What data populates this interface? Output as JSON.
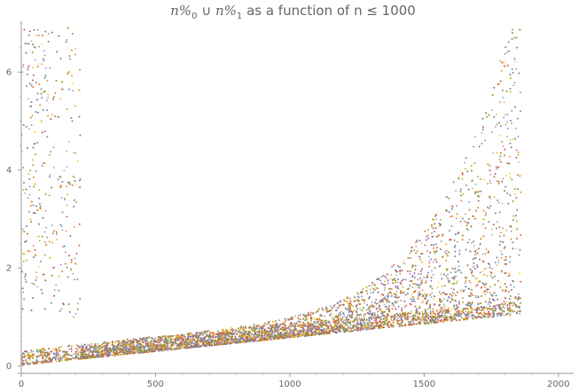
{
  "chart_data": {
    "type": "scatter",
    "title": {
      "var1": "n%",
      "sub1": "0",
      "union": "∪",
      "var2": "n%",
      "sub2": "1",
      "rest": "as a function of n ≤ 1000"
    },
    "xlabel": "",
    "ylabel": "",
    "xlim": [
      0,
      2050
    ],
    "ylim": [
      -0.15,
      7
    ],
    "x_ticks": [
      "0",
      "500",
      "1000",
      "1500",
      "2000"
    ],
    "y_ticks": [
      "0",
      "2",
      "4",
      "6"
    ],
    "x_tick_values": [
      0,
      500,
      1000,
      1500,
      2000
    ],
    "y_tick_values": [
      0,
      2,
      4,
      6
    ],
    "grid": false,
    "series": [
      {
        "color": "#5e81b5"
      },
      {
        "color": "#e19c24"
      },
      {
        "color": "#8fb032"
      },
      {
        "color": "#eb6235"
      },
      {
        "color": "#8778b3"
      },
      {
        "color": "#c56e1a"
      },
      {
        "color": "#5d9ec7"
      },
      {
        "color": "#ffbf00"
      },
      {
        "color": "#a5609d"
      },
      {
        "color": "#929600"
      },
      {
        "color": "#e95536"
      },
      {
        "color": "#6685d9"
      }
    ]
  }
}
